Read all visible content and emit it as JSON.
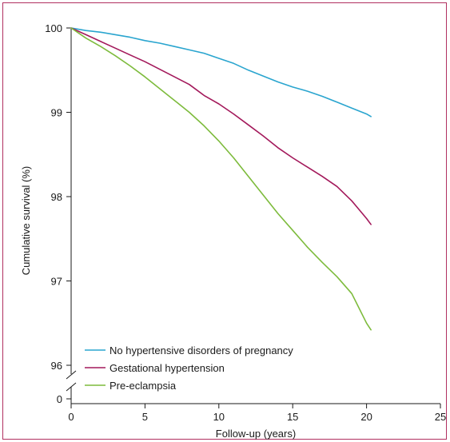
{
  "colors": {
    "frame": "#b03060",
    "axis": "#1a1a1a",
    "background": "#ffffff"
  },
  "chart_data": {
    "type": "line",
    "title": "",
    "xlabel": "Follow-up (years)",
    "ylabel": "Cumulative survival (%)",
    "xlim": [
      0,
      25
    ],
    "ylim": [
      96,
      100
    ],
    "y_axis_break": true,
    "x_ticks": [
      0,
      5,
      10,
      15,
      20,
      25
    ],
    "x_tick_labels": [
      "0",
      "5",
      "10",
      "15",
      "20",
      "25"
    ],
    "y_ticks": [
      96,
      97,
      98,
      99,
      100
    ],
    "y_tick_labels": [
      "96",
      "97",
      "98",
      "99",
      "100"
    ],
    "y_break_tick_label": "0",
    "grid": false,
    "legend_position": "bottom-left",
    "series": [
      {
        "name": "No hypertensive disorders of pregnancy",
        "color": "#2aa5cf",
        "x": [
          0,
          1,
          2,
          3,
          4,
          5,
          6,
          7,
          8,
          9,
          10,
          11,
          12,
          13,
          14,
          15,
          16,
          17,
          18,
          19,
          20,
          20.3
        ],
        "values": [
          100,
          99.97,
          99.95,
          99.92,
          99.89,
          99.85,
          99.82,
          99.78,
          99.74,
          99.7,
          99.64,
          99.58,
          99.5,
          99.43,
          99.36,
          99.3,
          99.25,
          99.19,
          99.12,
          99.05,
          98.98,
          98.95
        ]
      },
      {
        "name": "Gestational hypertension",
        "color": "#a3195b",
        "x": [
          0,
          1,
          2,
          3,
          4,
          5,
          6,
          7,
          8,
          9,
          10,
          11,
          12,
          13,
          14,
          15,
          16,
          17,
          18,
          19,
          20,
          20.3
        ],
        "values": [
          100,
          99.92,
          99.84,
          99.76,
          99.68,
          99.6,
          99.51,
          99.42,
          99.33,
          99.2,
          99.1,
          98.98,
          98.85,
          98.72,
          98.58,
          98.46,
          98.35,
          98.24,
          98.12,
          97.95,
          97.74,
          97.67
        ]
      },
      {
        "name": "Pre-eclampsia",
        "color": "#7dbb3c",
        "x": [
          0,
          1,
          2,
          3,
          4,
          5,
          6,
          7,
          8,
          9,
          10,
          11,
          12,
          13,
          14,
          15,
          16,
          17,
          18,
          19,
          20,
          20.3
        ],
        "values": [
          100,
          99.88,
          99.78,
          99.67,
          99.55,
          99.42,
          99.28,
          99.14,
          99.0,
          98.84,
          98.66,
          98.46,
          98.24,
          98.02,
          97.8,
          97.6,
          97.4,
          97.22,
          97.05,
          96.85,
          96.5,
          96.42
        ]
      }
    ]
  }
}
